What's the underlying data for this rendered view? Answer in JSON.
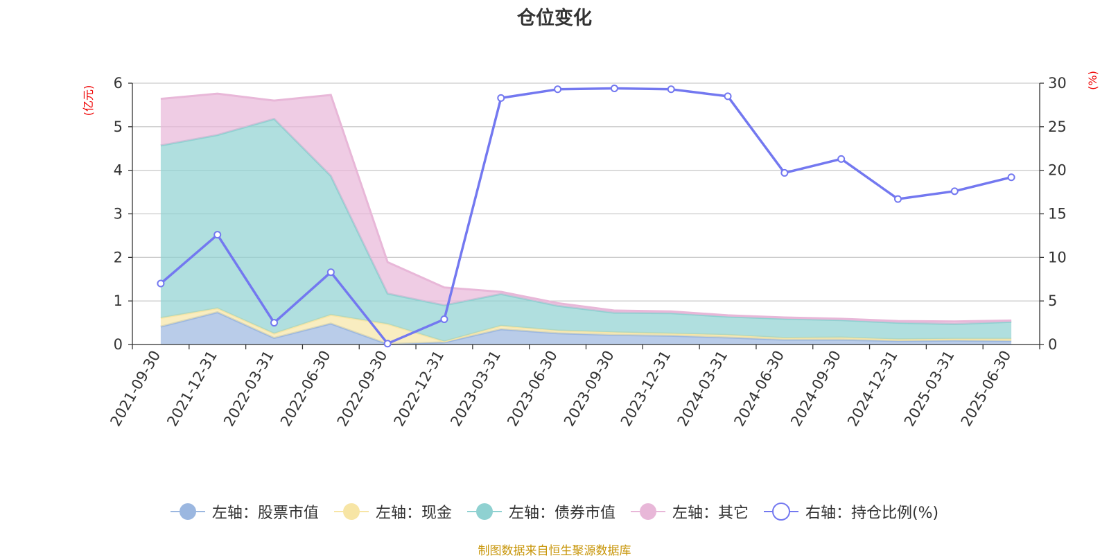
{
  "title": "仓位变化",
  "footer": "制图数据来自恒生聚源数据库",
  "left_unit": "(亿元)",
  "right_unit": "(%)",
  "chart_data": {
    "type": "area",
    "title": "仓位变化",
    "categories": [
      "2021-09-30",
      "2021-12-31",
      "2022-03-31",
      "2022-06-30",
      "2022-09-30",
      "2022-12-31",
      "2023-03-31",
      "2023-06-30",
      "2023-09-30",
      "2023-12-31",
      "2024-03-31",
      "2024-06-30",
      "2024-09-30",
      "2024-12-31",
      "2025-03-31",
      "2025-06-30"
    ],
    "left_axis": {
      "unit": "(亿元)",
      "ylim": [
        0,
        6
      ],
      "ticks": [
        0,
        1,
        2,
        3,
        4,
        5,
        6
      ]
    },
    "right_axis": {
      "unit": "(%)",
      "ylim": [
        0,
        30
      ],
      "ticks": [
        0,
        5,
        10,
        15,
        20,
        25,
        30
      ]
    },
    "stacked": true,
    "grid": true,
    "legend_position": "bottom",
    "series": [
      {
        "name": "左轴：股票市值",
        "axis": "left",
        "kind": "area",
        "color": "#9bb7e0",
        "values": [
          0.41,
          0.74,
          0.15,
          0.48,
          0.01,
          0.05,
          0.35,
          0.26,
          0.22,
          0.2,
          0.16,
          0.11,
          0.11,
          0.08,
          0.09,
          0.08
        ]
      },
      {
        "name": "左轴：现金",
        "axis": "left",
        "kind": "area",
        "color": "#f7e5a5",
        "values": [
          0.2,
          0.09,
          0.1,
          0.2,
          0.46,
          0.02,
          0.08,
          0.06,
          0.06,
          0.05,
          0.06,
          0.04,
          0.05,
          0.04,
          0.04,
          0.05
        ]
      },
      {
        "name": "左轴：债券市值",
        "axis": "left",
        "kind": "area",
        "color": "#8fd1d1",
        "values": [
          3.96,
          3.98,
          4.93,
          3.19,
          0.7,
          0.83,
          0.73,
          0.57,
          0.45,
          0.47,
          0.42,
          0.44,
          0.4,
          0.38,
          0.34,
          0.39
        ]
      },
      {
        "name": "左轴：其它",
        "axis": "left",
        "kind": "area",
        "color": "#e8b7d8",
        "values": [
          1.07,
          0.95,
          0.42,
          1.86,
          0.72,
          0.41,
          0.05,
          0.06,
          0.05,
          0.04,
          0.03,
          0.03,
          0.03,
          0.04,
          0.06,
          0.03
        ]
      },
      {
        "name": "右轴：持仓比例(%)",
        "axis": "right",
        "kind": "line",
        "color": "#7378f0",
        "values": [
          7.0,
          12.6,
          2.5,
          8.3,
          0.1,
          2.9,
          28.3,
          29.3,
          29.4,
          29.3,
          28.5,
          19.7,
          21.3,
          16.7,
          17.6,
          19.2
        ]
      }
    ]
  }
}
